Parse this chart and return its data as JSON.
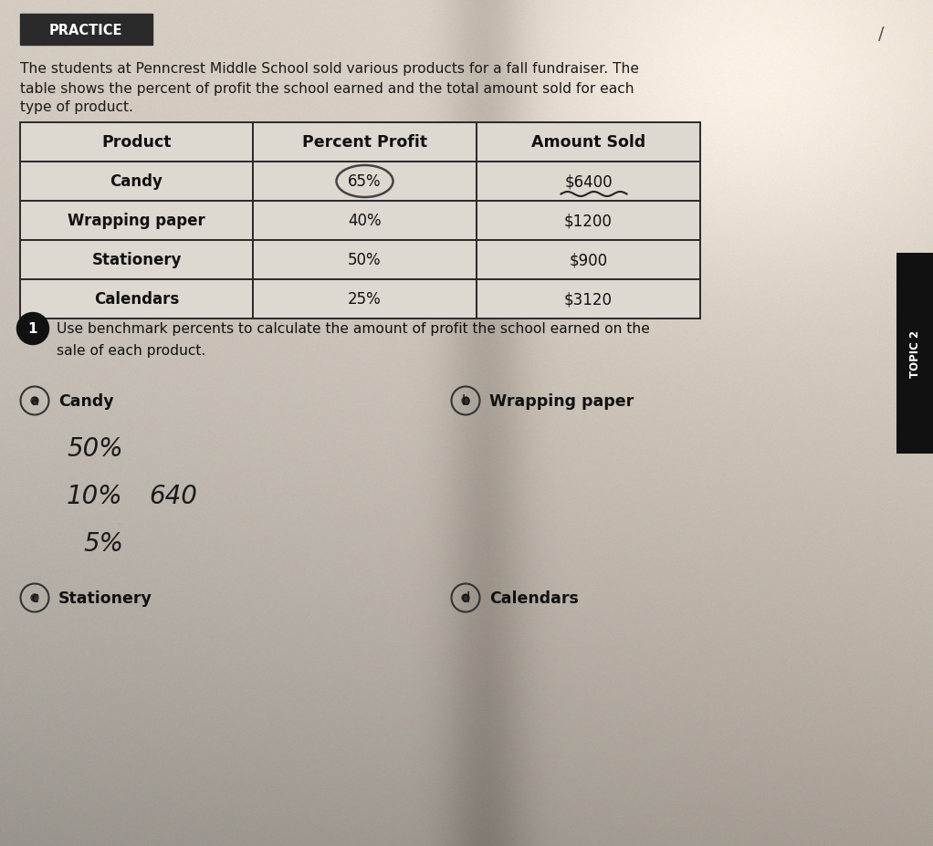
{
  "practice_label": "PRACTICE",
  "intro_text_line1": "The students at Penncrest Middle School sold various products for a fall fundraiser. The",
  "intro_text_line2": "table shows the percent of profit the school earned and the total amount sold for each",
  "intro_text_line3": "type of product.",
  "table_headers": [
    "Product",
    "Percent Profit",
    "Amount Sold"
  ],
  "table_rows": [
    [
      "Candy",
      "65%",
      "$6400"
    ],
    [
      "Wrapping paper",
      "40%",
      "$1200"
    ],
    [
      "Stationery",
      "50%",
      "$900"
    ],
    [
      "Calendars",
      "25%",
      "$3120"
    ]
  ],
  "question_number": "1",
  "question_text_line1": "Use benchmark percents to calculate the amount of profit the school earned on the",
  "question_text_line2": "sale of each product.",
  "sub_labels": [
    "a",
    "b",
    "c",
    "d"
  ],
  "sub_names": [
    "Candy",
    "Wrapping paper",
    "Stationery",
    "Calendars"
  ],
  "hw_line1": "50%",
  "hw_line2": "10%   640",
  "hw_line3": "5%",
  "bg_color_light": "#d4cdc2",
  "bg_color_dark": "#a89e90",
  "table_cell_bg": "#ddd9d2",
  "border_color": "#2a2a2a",
  "practice_bg": "#2a2a2a",
  "practice_text_color": "#ffffff",
  "text_color": "#1a1a1a",
  "sidebar_bg": "#111111",
  "sidebar_text": "TOPIC 2"
}
